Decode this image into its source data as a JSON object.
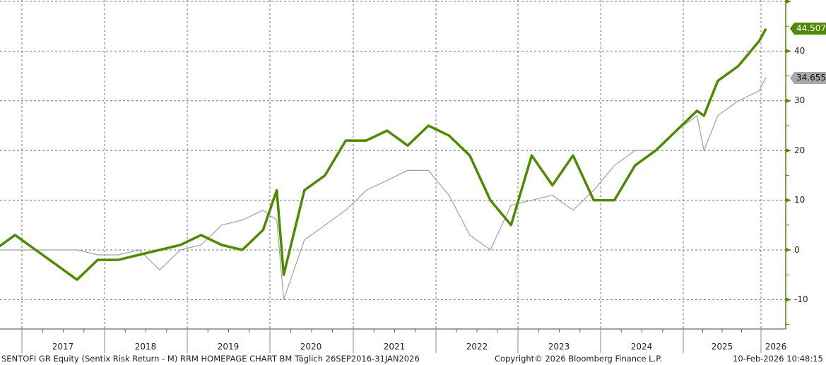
{
  "chart_data": {
    "type": "line",
    "title": "SENTOFI GR Equity (Sentix Risk Return - M) RRM HOMEPAGE CHART BM Täglich 26SEP2016-31JAN2026",
    "xlabel": "",
    "ylabel": "",
    "ylim": [
      -15,
      50
    ],
    "yticks": [
      -10,
      0,
      10,
      20,
      30,
      40
    ],
    "x_tick_labels": [
      "2017",
      "2018",
      "2019",
      "2020",
      "2021",
      "2022",
      "2023",
      "2024",
      "2025",
      "2026"
    ],
    "grid": true,
    "legend_position": "right-axis tags",
    "x": [
      "2016-09",
      "2016-12",
      "2017-03",
      "2017-06",
      "2017-09",
      "2017-12",
      "2018-03",
      "2018-06",
      "2018-09",
      "2018-12",
      "2019-03",
      "2019-06",
      "2019-09",
      "2019-12",
      "2020-02",
      "2020-03",
      "2020-06",
      "2020-09",
      "2020-12",
      "2021-03",
      "2021-06",
      "2021-09",
      "2021-12",
      "2022-03",
      "2022-06",
      "2022-09",
      "2022-12",
      "2023-03",
      "2023-06",
      "2023-09",
      "2023-12",
      "2024-03",
      "2024-06",
      "2024-09",
      "2024-12",
      "2025-03",
      "2025-04",
      "2025-06",
      "2025-09",
      "2025-12",
      "2026-01"
    ],
    "series": [
      {
        "name": "SENTOFI GR Equity",
        "color": "#4e8a00",
        "last_value": 44.5073,
        "values": [
          0,
          3,
          0,
          -3,
          -6,
          -2,
          -2,
          -1,
          0,
          1,
          3,
          1,
          0,
          4,
          12,
          -5,
          12,
          15,
          22,
          22,
          24,
          21,
          25,
          23,
          19,
          10,
          5,
          19,
          13,
          19,
          10,
          10,
          17,
          20,
          24,
          28,
          27,
          34,
          37,
          42,
          44.5
        ]
      },
      {
        "name": "Benchmark",
        "color": "#a0a0a0",
        "last_value": 34.6554,
        "values": [
          0,
          0,
          0,
          0,
          0,
          -1,
          -1,
          0,
          -4,
          0,
          1,
          5,
          6,
          8,
          6,
          -10,
          2,
          5,
          8,
          12,
          14,
          16,
          16,
          11,
          3,
          0,
          9,
          10,
          11,
          8,
          12,
          17,
          20,
          20,
          24,
          27,
          20,
          27,
          30,
          32,
          34.7
        ]
      }
    ]
  },
  "axis": {
    "y_labels": [
      "40",
      "30",
      "20",
      "10",
      "0",
      "-10"
    ],
    "x_labels": [
      "2017",
      "2018",
      "2019",
      "2020",
      "2021",
      "2022",
      "2023",
      "2024",
      "2025",
      "2026"
    ]
  },
  "tags": {
    "primary": "44.5073",
    "benchmark": "34.6554"
  },
  "footer": {
    "description": "SENTOFI GR Equity (Sentix Risk Return - M) RRM HOMEPAGE CHART BM Täglich 26SEP2016-31JAN2026",
    "copyright": "Copyright© 2026 Bloomberg Finance L.P.",
    "timestamp": "10-Feb-2026 10:48:15"
  }
}
